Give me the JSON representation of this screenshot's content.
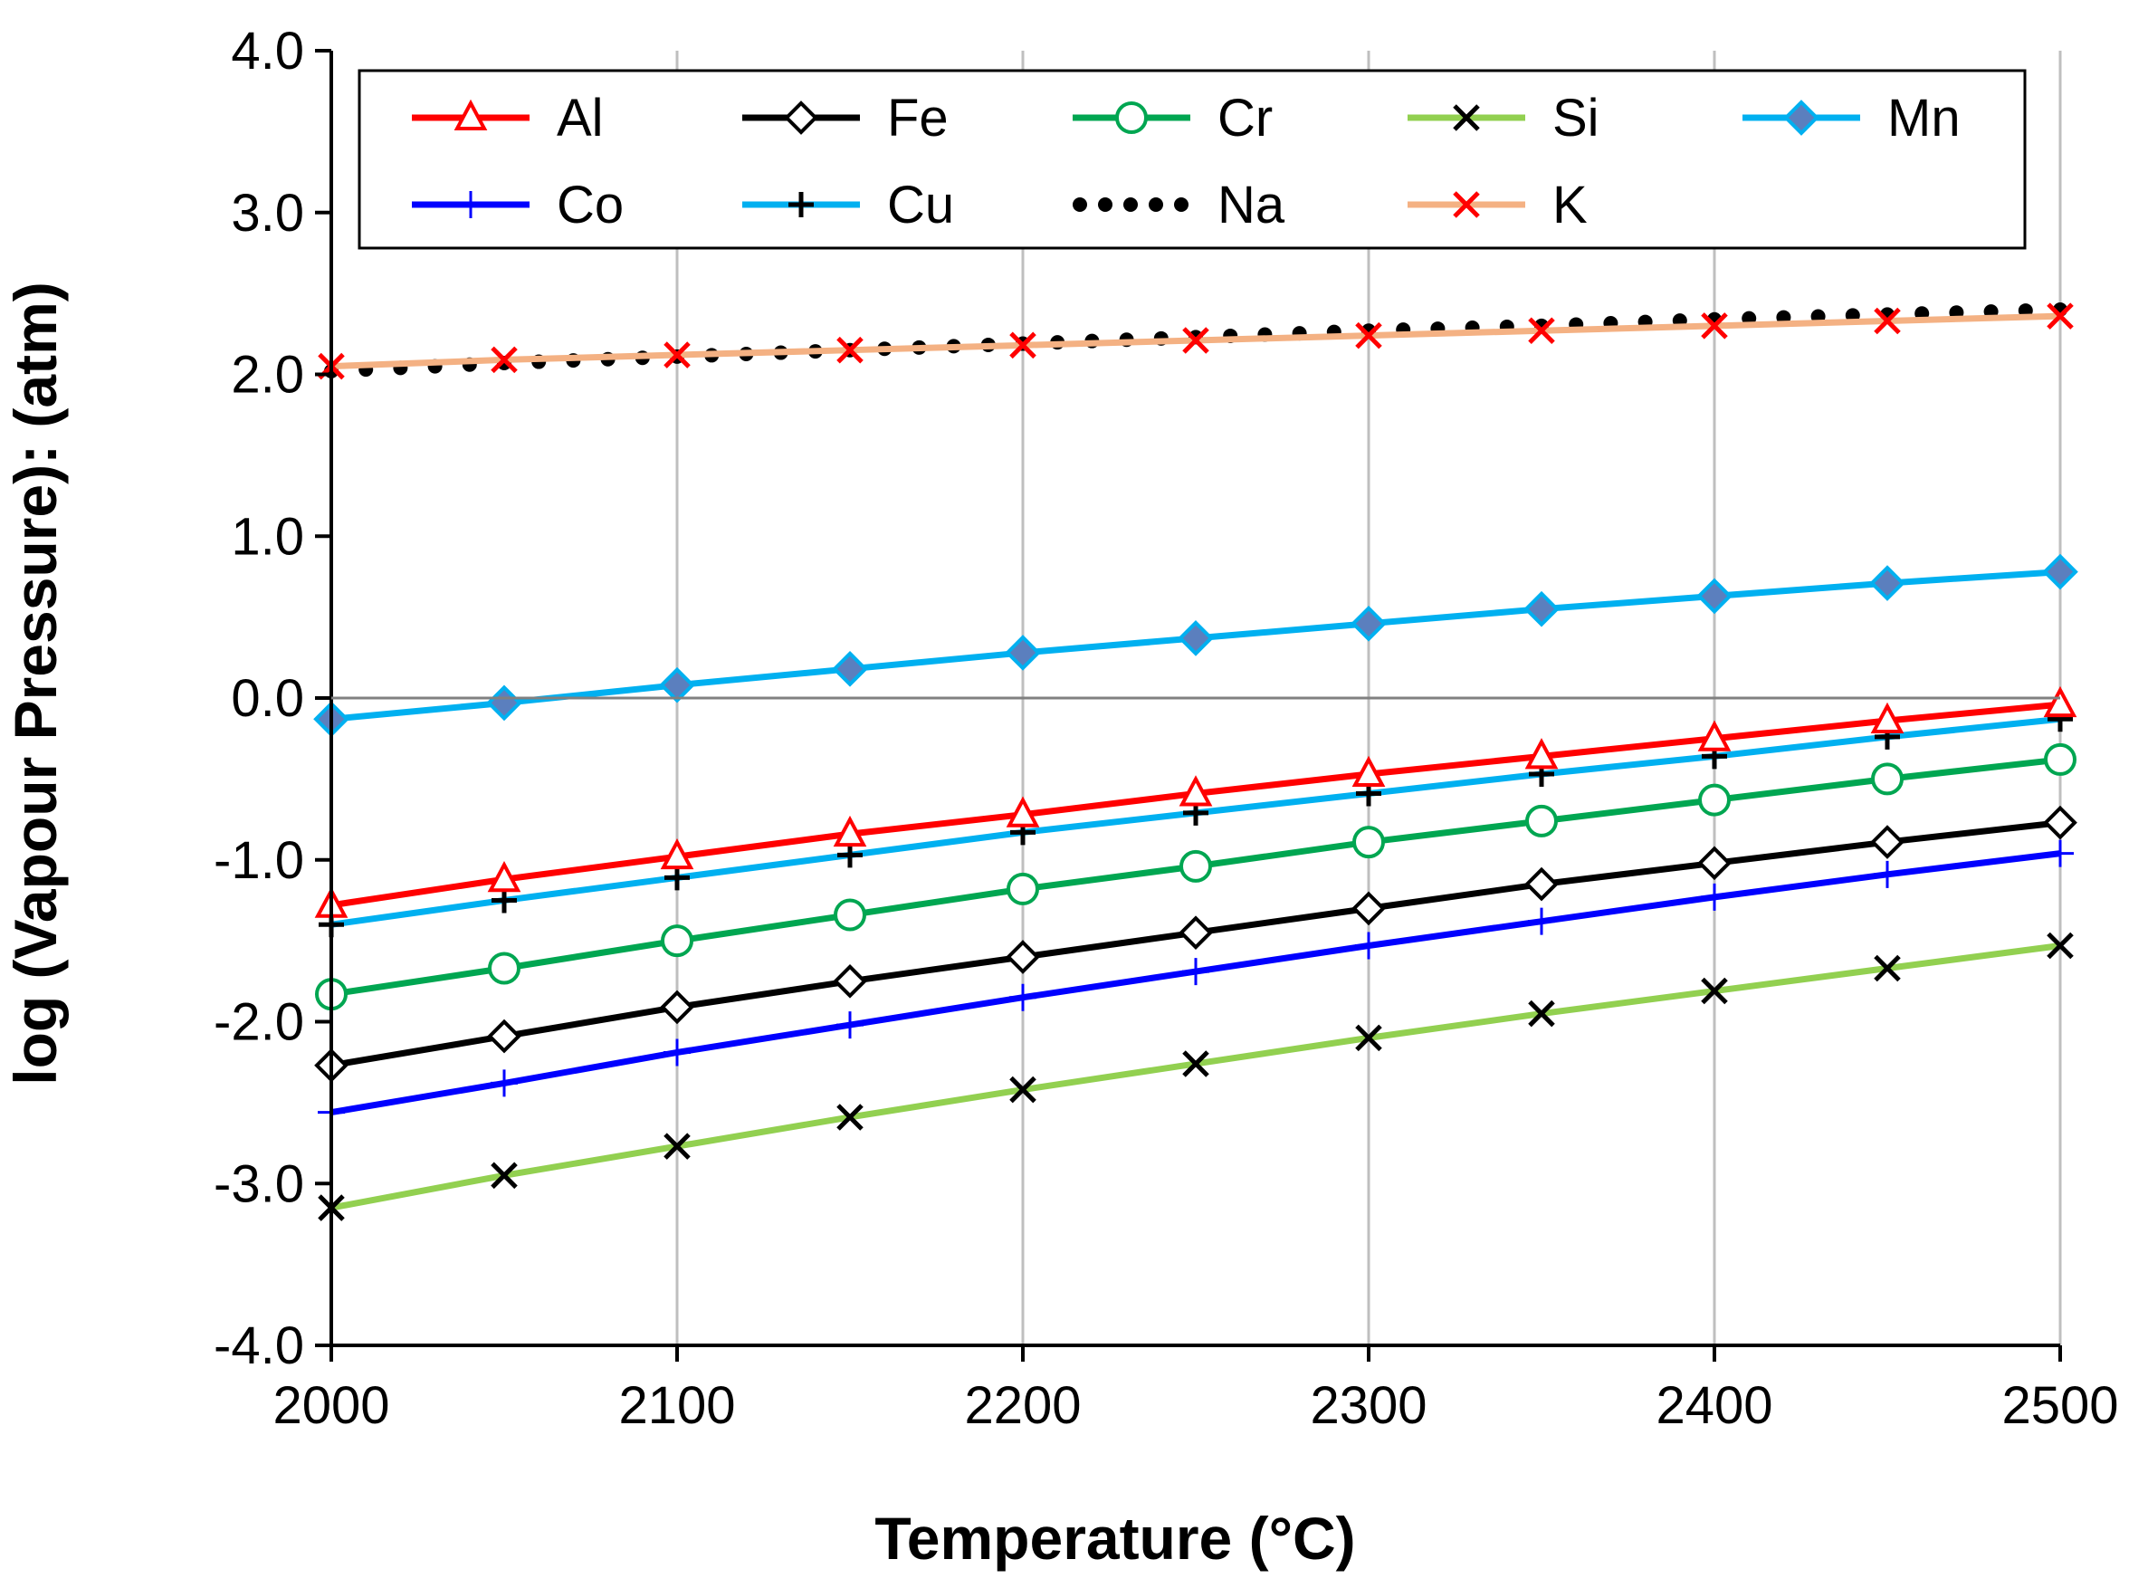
{
  "chart_data": {
    "type": "line",
    "title": "",
    "xlabel": "Temperature (°C)",
    "ylabel": "log (Vapour Pressure): (atm)",
    "xlim": [
      2000,
      2500
    ],
    "ylim": [
      -4.0,
      4.0
    ],
    "x_ticks": [
      2000,
      2100,
      2200,
      2300,
      2400,
      2500
    ],
    "x_tick_labels": [
      "2000",
      "2100",
      "2200",
      "2300",
      "2400",
      "2500"
    ],
    "y_ticks": [
      4,
      3,
      2,
      1,
      0,
      -1,
      -2,
      -3,
      -4
    ],
    "y_tick_labels": [
      "4.0",
      "3.0",
      "2.0",
      "1.0",
      "0.0",
      "-1.0",
      "-2.0",
      "-3.0",
      "-4.0"
    ],
    "grid": "vertical",
    "legend_position": "top",
    "x": [
      2000,
      2050,
      2100,
      2150,
      2200,
      2250,
      2300,
      2350,
      2400,
      2450,
      2500
    ],
    "series": [
      {
        "name": "Al",
        "color": "#ff0000",
        "marker": "triangle-open",
        "line": "solid",
        "values": [
          -1.28,
          -1.12,
          -0.98,
          -0.84,
          -0.72,
          -0.59,
          -0.47,
          -0.36,
          -0.25,
          -0.14,
          -0.04
        ]
      },
      {
        "name": "Fe",
        "color": "#000000",
        "marker": "diamond-open",
        "line": "solid",
        "values": [
          -2.27,
          -2.09,
          -1.91,
          -1.75,
          -1.6,
          -1.45,
          -1.3,
          -1.15,
          -1.02,
          -0.89,
          -0.77
        ]
      },
      {
        "name": "Cr",
        "color": "#00a651",
        "marker": "circle-open",
        "line": "solid",
        "values": [
          -1.83,
          -1.67,
          -1.5,
          -1.34,
          -1.18,
          -1.04,
          -0.89,
          -0.76,
          -0.63,
          -0.5,
          -0.38
        ]
      },
      {
        "name": "Si",
        "color": "#92d050",
        "marker": "x-black",
        "line": "solid",
        "values": [
          -3.15,
          -2.95,
          -2.77,
          -2.59,
          -2.42,
          -2.26,
          -2.1,
          -1.95,
          -1.81,
          -1.67,
          -1.53
        ]
      },
      {
        "name": "Mn",
        "color": "#00b0f0",
        "marker": "diamond-filled",
        "line": "solid",
        "values": [
          -0.13,
          -0.03,
          0.08,
          0.18,
          0.28,
          0.37,
          0.46,
          0.55,
          0.63,
          0.71,
          0.78
        ]
      },
      {
        "name": "Co",
        "color": "#0000ff",
        "marker": "plus-thin",
        "line": "solid",
        "values": [
          -2.56,
          -2.38,
          -2.19,
          -2.02,
          -1.85,
          -1.69,
          -1.53,
          -1.38,
          -1.23,
          -1.09,
          -0.96
        ]
      },
      {
        "name": "Cu",
        "color": "#00b0f0",
        "marker": "plus-black",
        "line": "solid",
        "values": [
          -1.4,
          -1.25,
          -1.11,
          -0.97,
          -0.83,
          -0.71,
          -0.59,
          -0.47,
          -0.36,
          -0.24,
          -0.13
        ]
      },
      {
        "name": "Na",
        "color": "#000000",
        "marker": "none",
        "line": "dotted",
        "values": [
          2.02,
          2.07,
          2.11,
          2.15,
          2.19,
          2.23,
          2.27,
          2.3,
          2.34,
          2.37,
          2.4
        ]
      },
      {
        "name": "K",
        "color": "#f4b183",
        "marker": "x-red",
        "line": "solid",
        "values": [
          2.05,
          2.09,
          2.12,
          2.15,
          2.18,
          2.21,
          2.24,
          2.27,
          2.3,
          2.33,
          2.36
        ]
      }
    ]
  }
}
